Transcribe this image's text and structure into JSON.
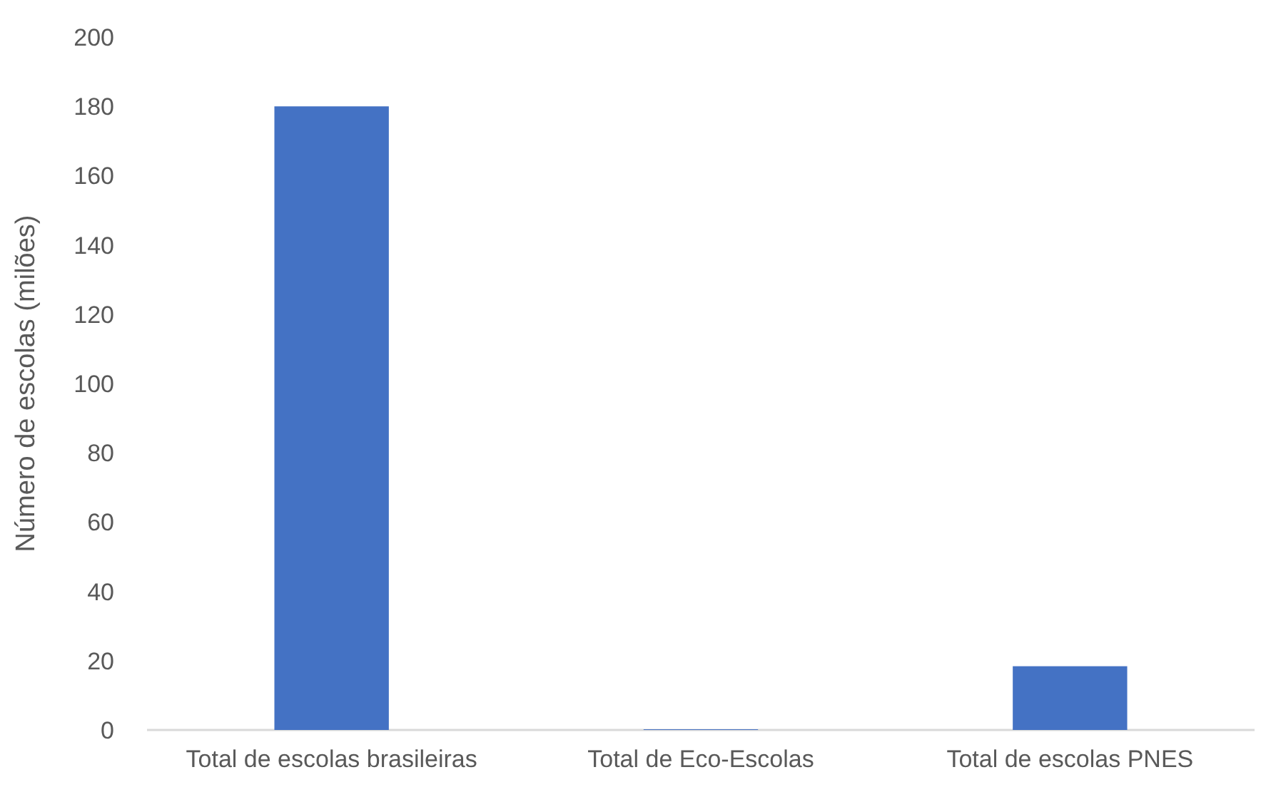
{
  "chart_data": {
    "type": "bar",
    "ylabel": "Número de escolas (milões)",
    "categories": [
      "Total de escolas brasileiras",
      "Total de Eco-Escolas",
      "Total de escolas PNES"
    ],
    "values": [
      180,
      0.2,
      18.4
    ],
    "color": "#4472c4",
    "ylim": [
      0,
      200
    ],
    "yticks": [
      0,
      20,
      40,
      60,
      80,
      100,
      120,
      140,
      160,
      180,
      200
    ]
  }
}
